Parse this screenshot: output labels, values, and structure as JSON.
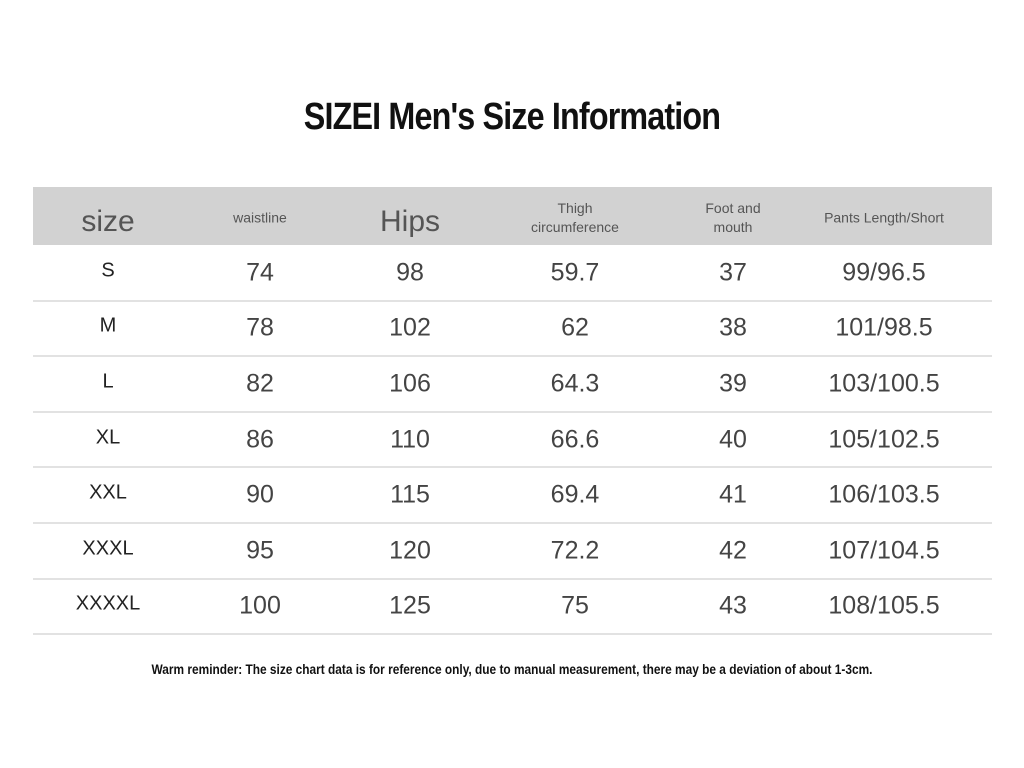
{
  "header": {
    "title": "SIZEI Men's Size Information"
  },
  "table": {
    "columns": [
      "size",
      "waistline",
      "Hips",
      "Thigh circumference",
      "Foot and mouth",
      "Pants Length/Short"
    ],
    "rows": [
      [
        "S",
        74,
        98,
        59.7,
        37,
        "99/96.5"
      ],
      [
        "M",
        78,
        102,
        62,
        38,
        "101/98.5"
      ],
      [
        "L",
        82,
        106,
        64.3,
        39,
        "103/100.5"
      ],
      [
        "XL",
        86,
        110,
        66.6,
        40,
        "105/102.5"
      ],
      [
        "XXL",
        90,
        115,
        69.4,
        41,
        "106/103.5"
      ],
      [
        "XXXL",
        95,
        120,
        72.2,
        42,
        "107/104.5"
      ],
      [
        "XXXXL",
        100,
        125,
        75,
        43,
        "108/105.5"
      ]
    ]
  },
  "footer": {
    "note": "Warm reminder: The size chart data is for reference only, due to manual measurement, there may be a deviation of about 1-3cm."
  }
}
